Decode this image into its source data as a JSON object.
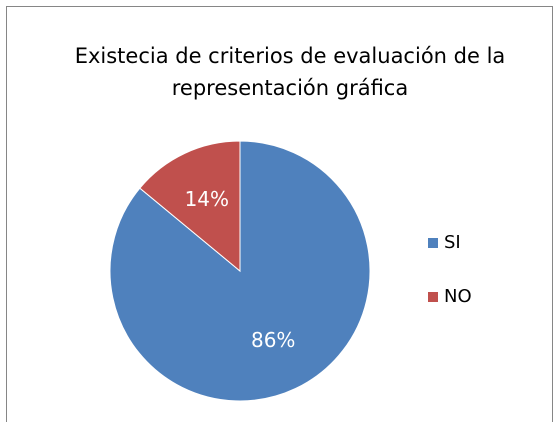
{
  "chart_data": {
    "type": "pie",
    "title": "Existecia de criterios de evaluación de la representación gráfica",
    "categories": [
      "SI",
      "NO"
    ],
    "values": [
      86,
      14
    ],
    "value_labels": [
      "86%",
      "14%"
    ],
    "colors": [
      "#4f81bd",
      "#c0504d"
    ],
    "legend": "right"
  }
}
